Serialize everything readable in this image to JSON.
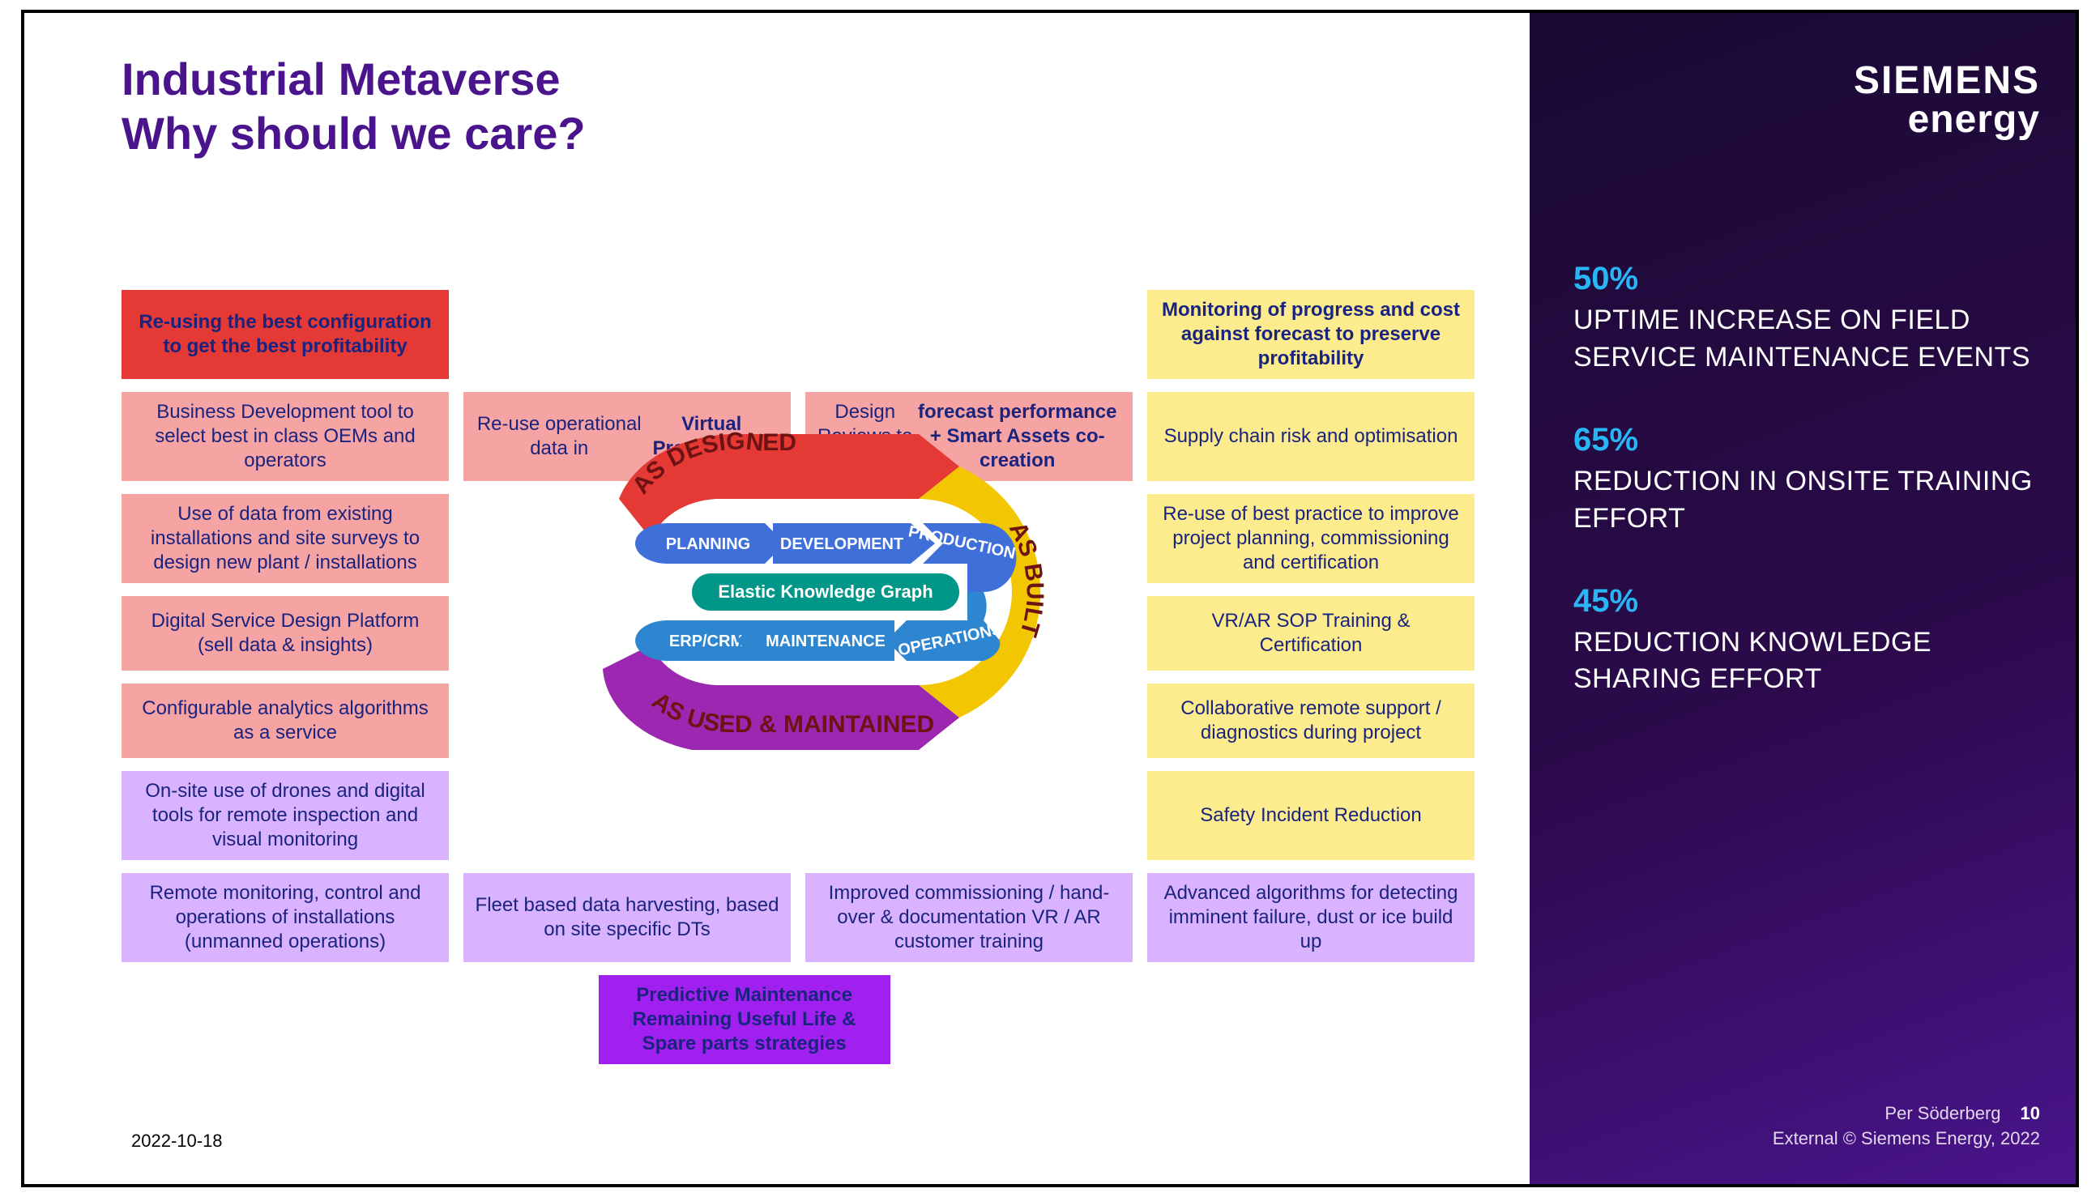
{
  "title": "Industrial Metaverse\nWhy should we care?",
  "colors": {
    "title": "#4a148c",
    "red_header": "#e53935",
    "pink": "#f5a3a3",
    "yellow": "#fcec8e",
    "violet_light": "#d9b3ff",
    "purple_header": "#a020f0",
    "cell_text": "#1a237e",
    "sidebar_gradient_from": "#1a0a33",
    "sidebar_gradient_mid": "#2b0a4a",
    "sidebar_gradient_to": "#4a148c",
    "stat_percent": "#29b6f6",
    "arc_red": "#e53935",
    "arc_yellow": "#f2c600",
    "arc_purple": "#9c27b0",
    "inner_blue": "#3f6fd8",
    "inner_blue2": "#2e86d0",
    "center_teal": "#009688"
  },
  "grid": {
    "rows": [
      [
        {
          "cls": "red-h",
          "text": "Re-using the best configuration to get the best profitability"
        },
        {
          "cls": "empty",
          "text": ""
        },
        {
          "cls": "empty",
          "text": ""
        },
        {
          "cls": "yellow-h",
          "text": "Monitoring of progress and cost against forecast to preserve profitability"
        }
      ],
      [
        {
          "cls": "pink",
          "text": "Business Development tool to select best in class OEMs and operators"
        },
        {
          "cls": "pink",
          "html": "Re-use operational data in <span class=\"bold-part\">Virtual Provisioning</span>"
        },
        {
          "cls": "pink",
          "html": "Design Reviews to show <span class=\"bold-part\">forecast performance + Smart Assets co-creation</span>"
        },
        {
          "cls": "yellow",
          "text": "Supply chain risk and optimisation"
        }
      ],
      [
        {
          "cls": "pink",
          "text": "Use of data from existing installations and site surveys to design new plant / installations"
        },
        {
          "cls": "empty",
          "text": ""
        },
        {
          "cls": "empty",
          "text": ""
        },
        {
          "cls": "yellow",
          "text": "Re-use of best practice to improve project planning, commissioning and certification"
        }
      ],
      [
        {
          "cls": "pink",
          "text": "Digital Service Design Platform (sell data & insights)"
        },
        {
          "cls": "empty",
          "text": ""
        },
        {
          "cls": "empty",
          "text": ""
        },
        {
          "cls": "yellow",
          "text": "VR/AR SOP Training & Certification"
        }
      ],
      [
        {
          "cls": "pink",
          "text": "Configurable analytics algorithms as a service"
        },
        {
          "cls": "empty",
          "text": ""
        },
        {
          "cls": "empty",
          "text": ""
        },
        {
          "cls": "yellow",
          "text": "Collaborative remote support / diagnostics during project"
        }
      ],
      [
        {
          "cls": "violet-l",
          "text": "On-site use of drones and digital tools for remote inspection and visual monitoring"
        },
        {
          "cls": "empty",
          "text": ""
        },
        {
          "cls": "empty",
          "text": ""
        },
        {
          "cls": "yellow",
          "text": "Safety Incident Reduction"
        }
      ],
      [
        {
          "cls": "violet-l",
          "text": "Remote monitoring, control and operations of installations (unmanned operations)"
        },
        {
          "cls": "violet-l",
          "text": "Fleet based data harvesting, based on site specific DTs"
        },
        {
          "cls": "violet-l",
          "text": "Improved commissioning / hand-over & documentation VR / AR customer training"
        },
        {
          "cls": "violet-l",
          "text": "Advanced algorithms for detecting imminent failure, dust or ice build up"
        }
      ],
      [
        {
          "cls": "empty",
          "text": ""
        },
        {
          "cls": "purple-h",
          "text": "Predictive Maintenance Remaining Useful Life & Spare parts strategies",
          "offset": true
        },
        {
          "cls": "empty",
          "text": ""
        },
        {
          "cls": "empty",
          "text": ""
        }
      ]
    ]
  },
  "cycle": {
    "outer": [
      {
        "label": "AS DESIGNED",
        "color": "#e53935"
      },
      {
        "label": "AS BUILT",
        "color": "#f2c600"
      },
      {
        "label": "AS USED & MAINTAINED",
        "color": "#9c27b0"
      }
    ],
    "inner_top": [
      {
        "label": "PLANNING",
        "color": "#3f6fd8"
      },
      {
        "label": "DEVELOPMENT",
        "color": "#3f6fd8"
      },
      {
        "label": "PRODUCTION",
        "color": "#3f6fd8"
      }
    ],
    "inner_bot": [
      {
        "label": "ERP/CRM",
        "color": "#2e86d0"
      },
      {
        "label": "MAINTENANCE",
        "color": "#2e86d0"
      },
      {
        "label": "OPERATIONS",
        "color": "#2e86d0"
      }
    ],
    "center": "Elastic Knowledge Graph"
  },
  "footer_date": "2022-10-18",
  "brand": {
    "top": "SIEMENS",
    "bottom": "energy"
  },
  "stats": [
    {
      "pct": "50%",
      "txt": "UPTIME INCREASE ON FIELD SERVICE MAINTENANCE EVENTS"
    },
    {
      "pct": "65%",
      "txt": "REDUCTION IN ONSITE TRAINING EFFORT"
    },
    {
      "pct": "45%",
      "txt": "REDUCTION KNOWLEDGE SHARING EFFORT"
    }
  ],
  "side_footer": {
    "author": "Per Söderberg",
    "page": "10",
    "copyright": "External © Siemens Energy, 2022"
  }
}
